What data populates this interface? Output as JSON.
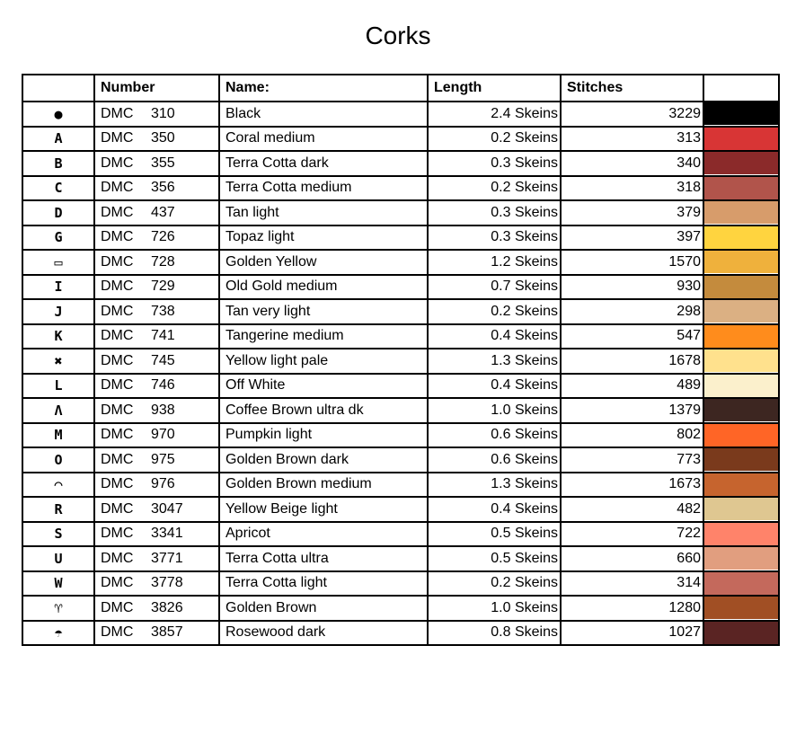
{
  "title": "Corks",
  "columns": {
    "symbol": "",
    "number": "Number",
    "name": "Name:",
    "length": "Length",
    "stitches": "Stitches",
    "color": ""
  },
  "rows": [
    {
      "symbol": "●",
      "brand": "DMC",
      "code": "310",
      "name": "Black",
      "length": "2.4 Skeins",
      "stitches": "3229",
      "color": "#000000"
    },
    {
      "symbol": "A",
      "brand": "DMC",
      "code": "350",
      "name": "Coral medium",
      "length": "0.2 Skeins",
      "stitches": "313",
      "color": "#d83535"
    },
    {
      "symbol": "B",
      "brand": "DMC",
      "code": "355",
      "name": "Terra Cotta dark",
      "length": "0.3 Skeins",
      "stitches": "340",
      "color": "#8b2a2a"
    },
    {
      "symbol": "C",
      "brand": "DMC",
      "code": "356",
      "name": "Terra Cotta medium",
      "length": "0.2 Skeins",
      "stitches": "318",
      "color": "#b1544b"
    },
    {
      "symbol": "D",
      "brand": "DMC",
      "code": "437",
      "name": "Tan light",
      "length": "0.3 Skeins",
      "stitches": "379",
      "color": "#d79c6b"
    },
    {
      "symbol": "G",
      "brand": "DMC",
      "code": "726",
      "name": "Topaz light",
      "length": "0.3 Skeins",
      "stitches": "397",
      "color": "#ffd43f"
    },
    {
      "symbol": "▭",
      "brand": "DMC",
      "code": "728",
      "name": "Golden Yellow",
      "length": "1.2 Skeins",
      "stitches": "1570",
      "color": "#efb13c"
    },
    {
      "symbol": "I",
      "brand": "DMC",
      "code": "729",
      "name": "Old Gold medium",
      "length": "0.7 Skeins",
      "stitches": "930",
      "color": "#c48b3d"
    },
    {
      "symbol": "J",
      "brand": "DMC",
      "code": "738",
      "name": "Tan very light",
      "length": "0.2 Skeins",
      "stitches": "298",
      "color": "#dbb083"
    },
    {
      "symbol": "K",
      "brand": "DMC",
      "code": "741",
      "name": "Tangerine medium",
      "length": "0.4 Skeins",
      "stitches": "547",
      "color": "#ff8c1c"
    },
    {
      "symbol": "✖",
      "brand": "DMC",
      "code": "745",
      "name": "Yellow light pale",
      "length": "1.3 Skeins",
      "stitches": "1678",
      "color": "#ffe18d"
    },
    {
      "symbol": "L",
      "brand": "DMC",
      "code": "746",
      "name": "Off White",
      "length": "0.4 Skeins",
      "stitches": "489",
      "color": "#fbf0cc"
    },
    {
      "symbol": "Λ",
      "brand": "DMC",
      "code": "938",
      "name": "Coffee Brown ultra dk",
      "length": "1.0 Skeins",
      "stitches": "1379",
      "color": "#3d2621"
    },
    {
      "symbol": "M",
      "brand": "DMC",
      "code": "970",
      "name": "Pumpkin light",
      "length": "0.6 Skeins",
      "stitches": "802",
      "color": "#ff6526"
    },
    {
      "symbol": "O",
      "brand": "DMC",
      "code": "975",
      "name": "Golden Brown dark",
      "length": "0.6 Skeins",
      "stitches": "773",
      "color": "#7a3a1c"
    },
    {
      "symbol": "⌒",
      "brand": "DMC",
      "code": "976",
      "name": "Golden Brown medium",
      "length": "1.3 Skeins",
      "stitches": "1673",
      "color": "#c6642e"
    },
    {
      "symbol": "R",
      "brand": "DMC",
      "code": "3047",
      "name": "Yellow Beige light",
      "length": "0.4 Skeins",
      "stitches": "482",
      "color": "#dfc791"
    },
    {
      "symbol": "S",
      "brand": "DMC",
      "code": "3341",
      "name": "Apricot",
      "length": "0.5 Skeins",
      "stitches": "722",
      "color": "#ff836a"
    },
    {
      "symbol": "U",
      "brand": "DMC",
      "code": "3771",
      "name": "Terra Cotta ultra",
      "length": "0.5 Skeins",
      "stitches": "660",
      "color": "#e19e7f"
    },
    {
      "symbol": "W",
      "brand": "DMC",
      "code": "3778",
      "name": "Terra Cotta light",
      "length": "0.2 Skeins",
      "stitches": "314",
      "color": "#c4695c"
    },
    {
      "symbol": "♈",
      "brand": "DMC",
      "code": "3826",
      "name": "Golden Brown",
      "length": "1.0 Skeins",
      "stitches": "1280",
      "color": "#a14f24"
    },
    {
      "symbol": "☂",
      "brand": "DMC",
      "code": "3857",
      "name": "Rosewood dark",
      "length": "0.8 Skeins",
      "stitches": "1027",
      "color": "#5a2423"
    }
  ]
}
